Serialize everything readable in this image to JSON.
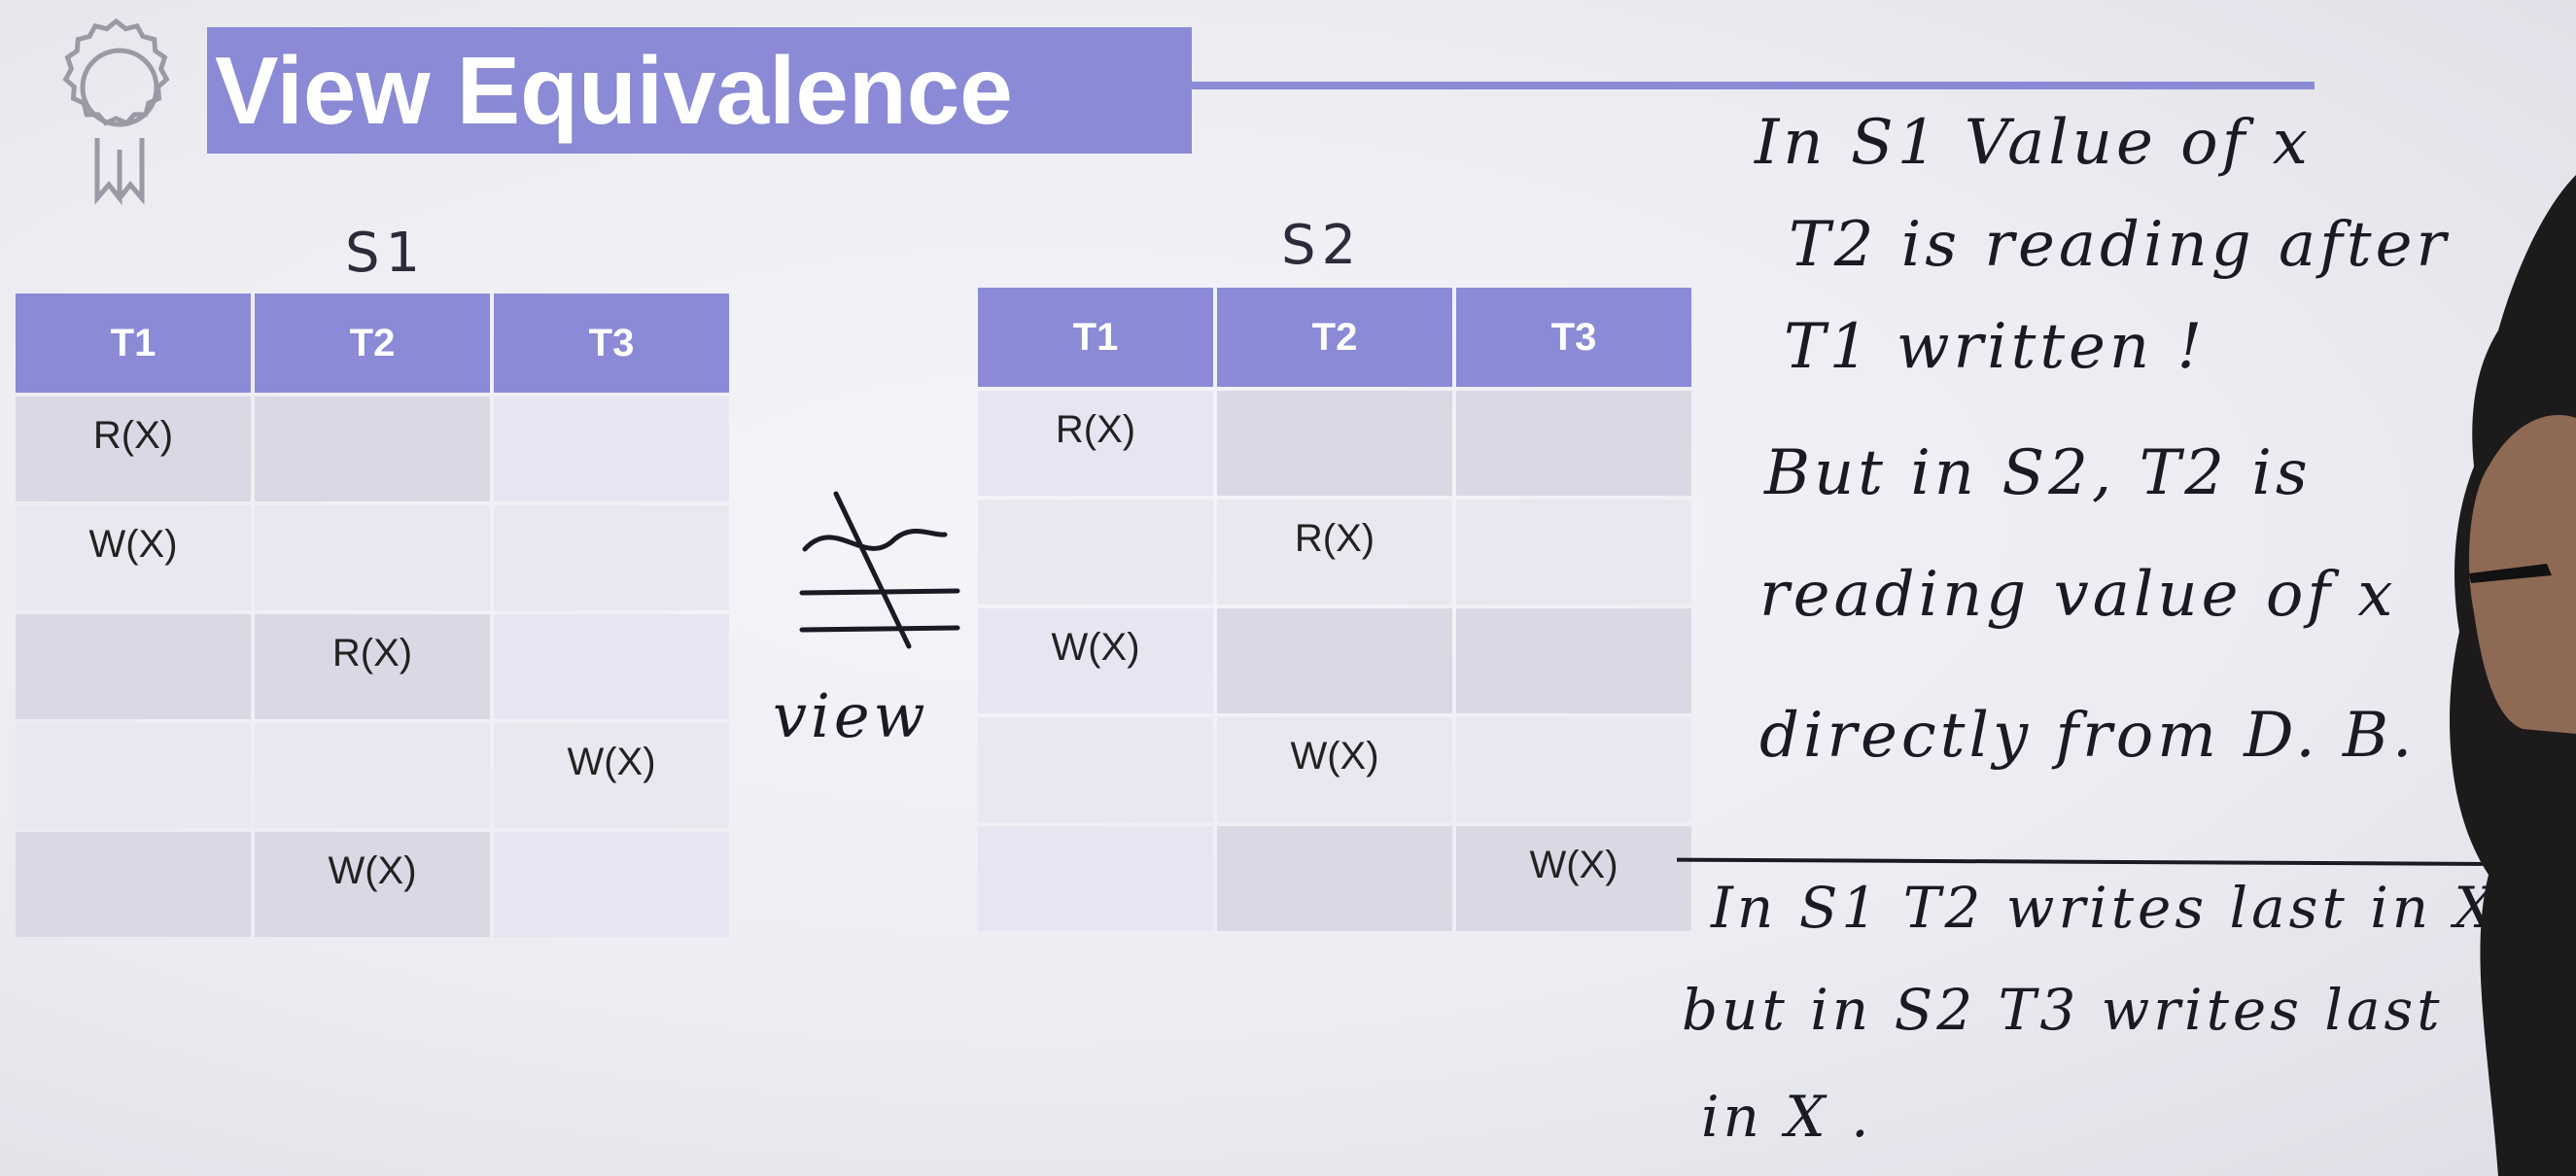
{
  "title": "View Equivalence",
  "s1": {
    "label": "S1",
    "headers": [
      "T1",
      "T2",
      "T3"
    ],
    "rows": [
      [
        "R(X)",
        "",
        ""
      ],
      [
        "W(X)",
        "",
        ""
      ],
      [
        "",
        "R(X)",
        ""
      ],
      [
        "",
        "",
        "W(X)"
      ],
      [
        "",
        "W(X)",
        ""
      ]
    ]
  },
  "s2": {
    "label": "S2",
    "headers": [
      "T1",
      "T2",
      "T3"
    ],
    "rows": [
      [
        "R(X)",
        "",
        ""
      ],
      [
        "",
        "R(X)",
        ""
      ],
      [
        "W(X)",
        "",
        ""
      ],
      [
        "",
        "W(X)",
        ""
      ],
      [
        "",
        "",
        "W(X)"
      ]
    ]
  },
  "relation_label": "view",
  "notes": {
    "line1": "In S1  Value of x",
    "line2": "T2  is reading after",
    "line3": "T1  written !",
    "line4": "But  in S2,  T2  is",
    "line5": "reading value of x",
    "line6": "directly from D. B.",
    "line7": "In S1   T2 writes last in X",
    "line8": "but in S2  T3 writes last",
    "line9": "in X ."
  },
  "colors": {
    "accent": "#8a8ad6",
    "cell_dark": "#d9d9e6",
    "cell_light": "#e8e8f0"
  },
  "icons": [
    "award-ribbon-icon"
  ]
}
